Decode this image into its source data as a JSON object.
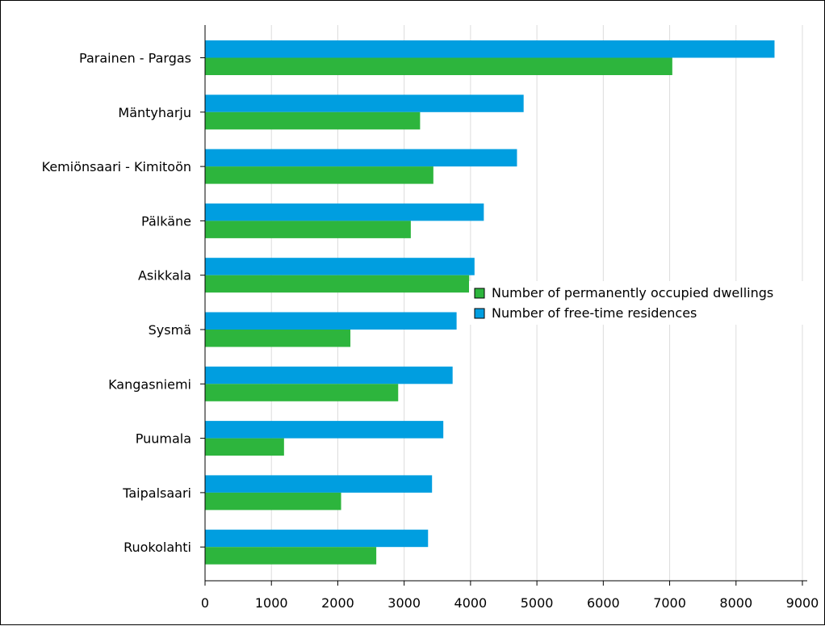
{
  "chart_data": {
    "type": "bar",
    "orientation": "horizontal",
    "categories": [
      "Parainen - Pargas",
      "Mäntyharju",
      "Kemiönsaari - Kimitoön",
      "Pälkäne",
      "Asikkala",
      "Sysmä",
      "Kangasniemi",
      "Puumala",
      "Taipalsaari",
      "Ruokolahti"
    ],
    "series": [
      {
        "name": "Number of free-time residences",
        "color": "#009ee0",
        "values": [
          8580,
          4800,
          4700,
          4200,
          4060,
          3790,
          3730,
          3590,
          3420,
          3360
        ]
      },
      {
        "name": "Number of permanently occupied dwellings",
        "color": "#2db53d",
        "values": [
          7040,
          3240,
          3440,
          3100,
          3980,
          2190,
          2910,
          1190,
          2050,
          2580
        ]
      }
    ],
    "legend": [
      {
        "label": "Number of permanently occupied dwellings",
        "color": "#2db53d"
      },
      {
        "label": "Number of free-time residences",
        "color": "#009ee0"
      }
    ],
    "legend_position": "center-right",
    "xlim": [
      0,
      9000
    ],
    "x_ticks": [
      "0",
      "1000",
      "2000",
      "3000",
      "4000",
      "5000",
      "6000",
      "7000",
      "8000",
      "9000"
    ],
    "grid": "vertical",
    "title": "",
    "xlabel": "",
    "ylabel": ""
  }
}
